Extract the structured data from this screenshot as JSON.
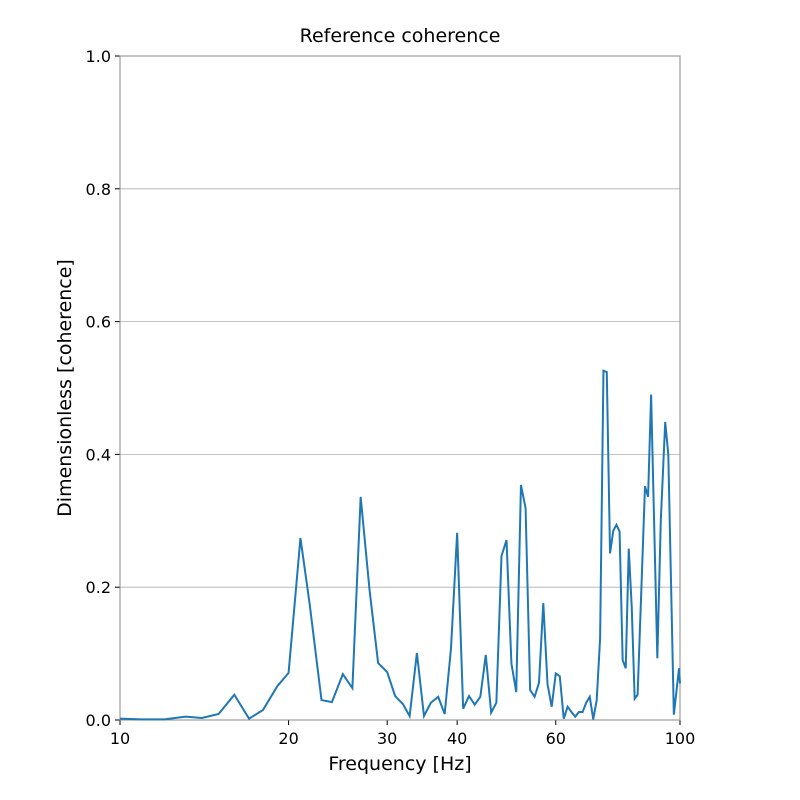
{
  "chart_data": {
    "type": "line",
    "title": "Reference coherence",
    "xlabel": "Frequency [Hz]",
    "ylabel": "Dimensionless [coherence]",
    "xscale": "log",
    "grid": "y",
    "color": "#1f77b4",
    "xlim": [
      10,
      100
    ],
    "xticks": [
      10,
      20,
      30,
      40,
      60,
      100
    ],
    "ylim": [
      0,
      1
    ],
    "yticks": [
      {
        "value": 0,
        "label": "0.0"
      },
      {
        "value": 0.2,
        "label": "0.2"
      },
      {
        "value": 0.4,
        "label": "0.4"
      },
      {
        "value": 0.6,
        "label": "0.6"
      },
      {
        "value": 0.8,
        "label": "0.8"
      },
      {
        "value": 1,
        "label": "1.0"
      }
    ],
    "x": [
      10,
      10.9,
      12,
      13.1,
      14,
      15,
      16,
      17,
      18,
      19.1,
      20,
      21,
      21.8,
      22.9,
      23.9,
      25,
      26,
      26.9,
      27.9,
      28.9,
      30,
      31,
      32,
      32.9,
      33.9,
      34.9,
      35.9,
      37,
      38,
      39,
      40,
      41,
      42,
      43,
      44,
      45,
      46,
      47,
      48,
      49,
      50,
      51,
      52,
      53,
      54,
      55,
      56,
      57,
      58,
      59,
      60,
      61,
      62,
      63,
      64,
      65,
      66,
      67,
      68,
      69,
      70,
      71,
      72,
      73,
      74,
      75,
      76,
      77,
      78,
      79,
      80,
      81,
      82,
      83,
      84,
      86.6,
      87.7,
      88.8,
      91.1,
      92.4,
      94.1,
      95.3,
      97.5,
      99.6,
      100
    ],
    "series": [
      {
        "name": "Reference coherence",
        "color": "#1f77b4",
        "values": [
          0.002,
          0.001,
          0.001,
          0.005,
          0.003,
          0.009,
          0.038,
          0.002,
          0.015,
          0.051,
          0.071,
          0.274,
          0.176,
          0.03,
          0.027,
          0.069,
          0.048,
          0.336,
          0.196,
          0.086,
          0.072,
          0.036,
          0.024,
          0.006,
          0.101,
          0.006,
          0.026,
          0.035,
          0.009,
          0.108,
          0.282,
          0.017,
          0.036,
          0.023,
          0.035,
          0.098,
          0.011,
          0.026,
          0.247,
          0.271,
          0.085,
          0.042,
          0.354,
          0.319,
          0.045,
          0.035,
          0.056,
          0.176,
          0.054,
          0.02,
          0.07,
          0.066,
          0.002,
          0.02,
          0.012,
          0.005,
          0.012,
          0.012,
          0.026,
          0.035,
          0.001,
          0.03,
          0.123,
          0.526,
          0.524,
          0.251,
          0.285,
          0.294,
          0.284,
          0.09,
          0.078,
          0.258,
          0.17,
          0.032,
          0.038,
          0.352,
          0.336,
          0.49,
          0.093,
          0.3,
          0.449,
          0.4,
          0.008,
          0.078,
          0.055
        ]
      }
    ]
  }
}
